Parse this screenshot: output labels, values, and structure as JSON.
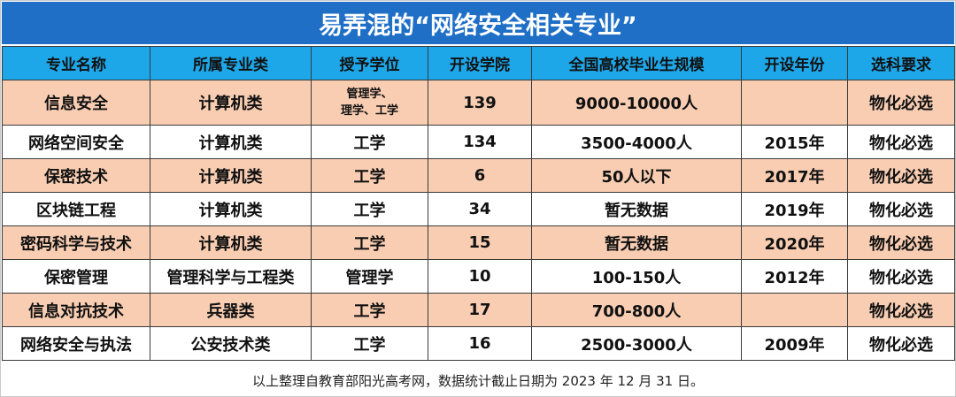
{
  "title": "易弄混的“网络安全相关专业”",
  "colors": {
    "title_bg": "#1f6fc7",
    "header_bg": "#1ea7e8",
    "row_peach": "#f8cdb2",
    "row_white": "#ffffff"
  },
  "headers": [
    "专业名称",
    "所属专业类",
    "授予学位",
    "开设学院",
    "全国高校毕业生规模",
    "开设年份",
    "选科要求"
  ],
  "rows": [
    {
      "name": "信息安全",
      "category": "计算机类",
      "degree_line1": "管理学、",
      "degree_line2": "理学、工学",
      "colleges": "139",
      "scale": "9000-10000人",
      "year": "",
      "subjects": "物化必选"
    },
    {
      "name": "网络空间安全",
      "category": "计算机类",
      "degree": "工学",
      "colleges": "134",
      "scale": "3500-4000人",
      "year": "2015年",
      "subjects": "物化必选"
    },
    {
      "name": "保密技术",
      "category": "计算机类",
      "degree": "工学",
      "colleges": "6",
      "scale": "50人以下",
      "year": "2017年",
      "subjects": "物化必选"
    },
    {
      "name": "区块链工程",
      "category": "计算机类",
      "degree": "工学",
      "colleges": "34",
      "scale": "暂无数据",
      "year": "2019年",
      "subjects": "物化必选"
    },
    {
      "name": "密码科学与技术",
      "category": "计算机类",
      "degree": "工学",
      "colleges": "15",
      "scale": "暂无数据",
      "year": "2020年",
      "subjects": "物化必选"
    },
    {
      "name": "保密管理",
      "category": "管理科学与工程类",
      "degree": "管理学",
      "colleges": "10",
      "scale": "100-150人",
      "year": "2012年",
      "subjects": "物化必选"
    },
    {
      "name": "信息对抗技术",
      "category": "兵器类",
      "degree": "工学",
      "colleges": "17",
      "scale": "700-800人",
      "year": "",
      "subjects": "物化必选"
    },
    {
      "name": "网络安全与执法",
      "category": "公安技术类",
      "degree": "工学",
      "colleges": "16",
      "scale": "2500-3000人",
      "year": "2009年",
      "subjects": "物化必选"
    }
  ],
  "footnote": "以上整理自教育部阳光高考网，数据统计截止日期为 2023 年 12 月 31 日。"
}
